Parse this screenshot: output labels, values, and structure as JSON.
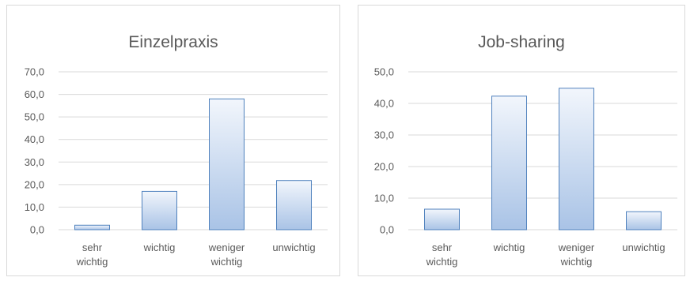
{
  "chart_data": [
    {
      "type": "bar",
      "title": "Einzelpraxis",
      "categories": [
        [
          "sehr",
          "wichtig"
        ],
        [
          "wichtig"
        ],
        [
          "weniger",
          "wichtig"
        ],
        [
          "unwichtig"
        ]
      ],
      "values": [
        2.0,
        17.0,
        58.0,
        21.8
      ],
      "ylim": [
        0,
        70
      ],
      "yticks": [
        "0,0",
        "10,0",
        "20,0",
        "30,0",
        "40,0",
        "50,0",
        "60,0",
        "70,0"
      ],
      "grid": true,
      "bar_color": "#4f81bd"
    },
    {
      "type": "bar",
      "title": "Job-sharing",
      "categories": [
        [
          "sehr",
          "wichtig"
        ],
        [
          "wichtig"
        ],
        [
          "weniger",
          "wichtig"
        ],
        [
          "unwichtig"
        ]
      ],
      "values": [
        6.5,
        42.3,
        44.8,
        5.7
      ],
      "ylim": [
        0,
        50
      ],
      "yticks": [
        "0,0",
        "10,0",
        "20,0",
        "30,0",
        "40,0",
        "50,0"
      ],
      "grid": true,
      "bar_color": "#4f81bd"
    }
  ]
}
